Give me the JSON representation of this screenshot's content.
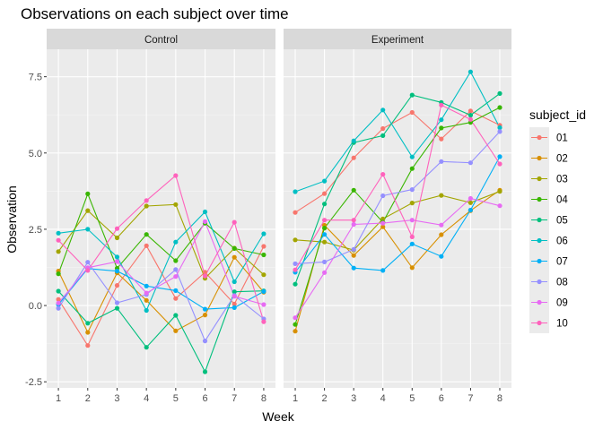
{
  "title": "Observations on each subject over time",
  "xlabel": "Week",
  "ylabel": "Observation",
  "legend_title": "subject_id",
  "chart_data": {
    "type": "line",
    "title": "Observations on each subject over time",
    "xlabel": "Week",
    "ylabel": "Observation",
    "x": [
      1,
      2,
      3,
      4,
      5,
      6,
      7,
      8
    ],
    "x_ticks": [
      "1",
      "2",
      "3",
      "4",
      "5",
      "6",
      "7",
      "8"
    ],
    "y_ticks": [
      -2.5,
      0,
      2.5,
      5,
      7.5
    ],
    "y_tick_labels": [
      "-2.5",
      "0.0",
      "2.5",
      "5.0",
      "7.5"
    ],
    "ylim": [
      -2.7,
      8.4
    ],
    "xlim": [
      0.6,
      8.4
    ],
    "grid": true,
    "legend_position": "right",
    "legend_title": "subject_id",
    "panels": [
      {
        "name": "Control",
        "series": [
          {
            "name": "01",
            "color": "#f8766d",
            "values": [
              0.2,
              -1.31,
              0.66,
              1.96,
              0.23,
              1.09,
              0.05,
              1.94
            ]
          },
          {
            "name": "02",
            "color": "#d89000",
            "values": [
              1.13,
              -0.88,
              1.07,
              0.17,
              -0.83,
              -0.31,
              1.58,
              0.44
            ]
          },
          {
            "name": "03",
            "color": "#a3a500",
            "values": [
              1.77,
              3.11,
              2.22,
              3.26,
              3.31,
              0.89,
              1.88,
              1.01
            ]
          },
          {
            "name": "04",
            "color": "#39b600",
            "values": [
              1.04,
              3.66,
              1.22,
              2.33,
              1.47,
              2.7,
              1.87,
              1.66
            ]
          },
          {
            "name": "05",
            "color": "#00bf7d",
            "values": [
              0.47,
              -0.58,
              -0.09,
              -1.37,
              -0.32,
              -2.17,
              0.45,
              0.48
            ]
          },
          {
            "name": "06",
            "color": "#00bfc4",
            "values": [
              2.37,
              2.5,
              1.59,
              -0.16,
              2.08,
              3.07,
              0.78,
              2.35
            ]
          },
          {
            "name": "07",
            "color": "#00b0f6",
            "values": [
              0.03,
              1.21,
              1.13,
              0.64,
              0.49,
              -0.12,
              -0.07,
              0.46
            ]
          },
          {
            "name": "08",
            "color": "#9590ff",
            "values": [
              -0.09,
              1.42,
              0.09,
              0.36,
              1.18,
              -1.16,
              0.33,
              -0.44
            ]
          },
          {
            "name": "09",
            "color": "#e76bf3",
            "values": [
              0.08,
              1.24,
              1.44,
              0.41,
              0.95,
              2.75,
              0.3,
              0.03
            ]
          },
          {
            "name": "10",
            "color": "#ff62bc",
            "values": [
              2.14,
              1.15,
              2.52,
              3.44,
              4.26,
              0.97,
              2.73,
              -0.53
            ]
          }
        ]
      },
      {
        "name": "Experiment",
        "series": [
          {
            "name": "01",
            "color": "#f8766d",
            "values": [
              3.05,
              3.67,
              4.84,
              5.8,
              6.33,
              5.46,
              6.38,
              5.91
            ]
          },
          {
            "name": "02",
            "color": "#d89000",
            "values": [
              -0.84,
              2.63,
              1.64,
              2.58,
              1.24,
              2.32,
              3.11,
              3.78
            ]
          },
          {
            "name": "03",
            "color": "#a3a500",
            "values": [
              2.15,
              2.08,
              1.82,
              2.84,
              3.36,
              3.61,
              3.37,
              3.74
            ]
          },
          {
            "name": "04",
            "color": "#39b600",
            "values": [
              -0.62,
              2.54,
              3.78,
              2.73,
              4.49,
              5.82,
              6.0,
              6.49
            ]
          },
          {
            "name": "05",
            "color": "#00bf7d",
            "values": [
              0.7,
              3.33,
              5.34,
              5.57,
              6.9,
              6.66,
              6.24,
              6.95
            ]
          },
          {
            "name": "06",
            "color": "#00bfc4",
            "values": [
              3.73,
              4.08,
              5.4,
              6.41,
              4.87,
              6.09,
              7.66,
              5.83
            ]
          },
          {
            "name": "07",
            "color": "#00b0f6",
            "values": [
              1.09,
              2.33,
              1.23,
              1.15,
              2.02,
              1.61,
              3.13,
              4.88
            ]
          },
          {
            "name": "08",
            "color": "#9590ff",
            "values": [
              1.37,
              1.43,
              1.84,
              3.6,
              3.8,
              4.72,
              4.68,
              5.7
            ]
          },
          {
            "name": "09",
            "color": "#e76bf3",
            "values": [
              -0.4,
              1.08,
              2.66,
              2.7,
              2.8,
              2.64,
              3.51,
              3.27
            ]
          },
          {
            "name": "10",
            "color": "#ff62bc",
            "values": [
              1.17,
              2.8,
              2.8,
              4.3,
              2.25,
              6.57,
              6.1,
              4.64
            ]
          }
        ]
      }
    ]
  }
}
